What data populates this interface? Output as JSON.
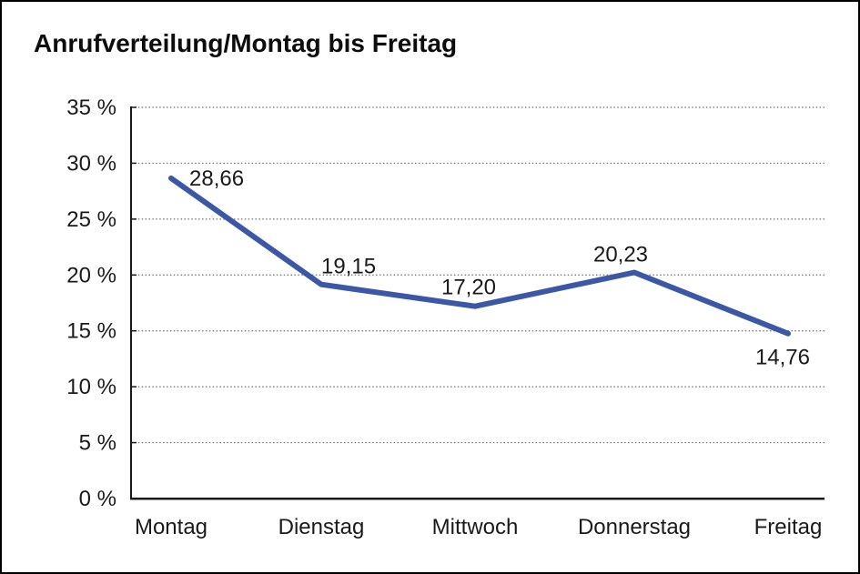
{
  "chart_data": {
    "type": "line",
    "title": "Anrufverteilung/Montag bis Freitag",
    "categories": [
      "Montag",
      "Dienstag",
      "Mittwoch",
      "Donnerstag",
      "Freitag"
    ],
    "values": [
      28.66,
      19.15,
      17.2,
      20.23,
      14.76
    ],
    "value_labels": [
      "28,66",
      "19,15",
      "17,20",
      "20,23",
      "14,76"
    ],
    "xlabel": "",
    "ylabel": "",
    "ylim": [
      0,
      35
    ],
    "ytick_step": 5,
    "ytick_labels": [
      "0 %",
      "5 %",
      "10 %",
      "15 %",
      "20 %",
      "25 %",
      "30 %",
      "35 %"
    ],
    "grid": "horizontal-dotted",
    "legend_position": "none",
    "colors": {
      "line": "#3B57A6",
      "text": "#1a1a1a",
      "grid": "#6e6e6e",
      "axis": "#1a1a1a",
      "background": "#ffffff",
      "border": "#000000"
    }
  }
}
